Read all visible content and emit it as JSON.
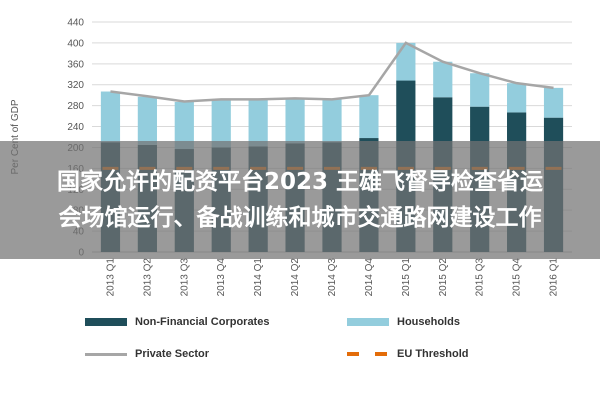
{
  "chart_data": {
    "type": "bar",
    "stacked": true,
    "ylabel": "Per Cent of GDP",
    "ylim": [
      0,
      440
    ],
    "yticks": [
      0,
      40,
      80,
      120,
      160,
      200,
      240,
      280,
      320,
      360,
      400,
      440
    ],
    "grid": true,
    "categories": [
      "2013 Q1",
      "2013 Q2",
      "2013 Q3",
      "2013 Q4",
      "2014 Q1",
      "2014 Q2",
      "2014 Q3",
      "2014 Q4",
      "2015 Q1",
      "2015 Q2",
      "2015 Q3",
      "2015 Q4",
      "2016 Q1"
    ],
    "series": [
      {
        "name": "Non-Financial Corporates",
        "type": "bar",
        "color": "#1f4e5a",
        "values": [
          210,
          205,
          197,
          200,
          202,
          208,
          210,
          218,
          328,
          296,
          278,
          267,
          257
        ]
      },
      {
        "name": "Households",
        "type": "bar",
        "color": "#93cddd",
        "values": [
          97,
          92,
          90,
          92,
          90,
          86,
          82,
          82,
          72,
          68,
          64,
          56,
          57
        ]
      },
      {
        "name": "Private Sector",
        "type": "line",
        "color": "#a6a6a6",
        "values": [
          307,
          298,
          288,
          292,
          292,
          294,
          292,
          300,
          400,
          364,
          342,
          323,
          314
        ]
      },
      {
        "name": "EU Threshold",
        "type": "line",
        "color": "#e36c09",
        "dashed": true,
        "values": [
          160,
          160,
          160,
          160,
          160,
          160,
          160,
          160,
          160,
          160,
          160,
          160,
          160
        ]
      }
    ],
    "legend": "bottom"
  },
  "overlay": {
    "line1": "国家允许的配资平台2023 王雄飞督导检查省运",
    "line2": "会场馆运行、备战训练和城市交通路网建设工作"
  }
}
